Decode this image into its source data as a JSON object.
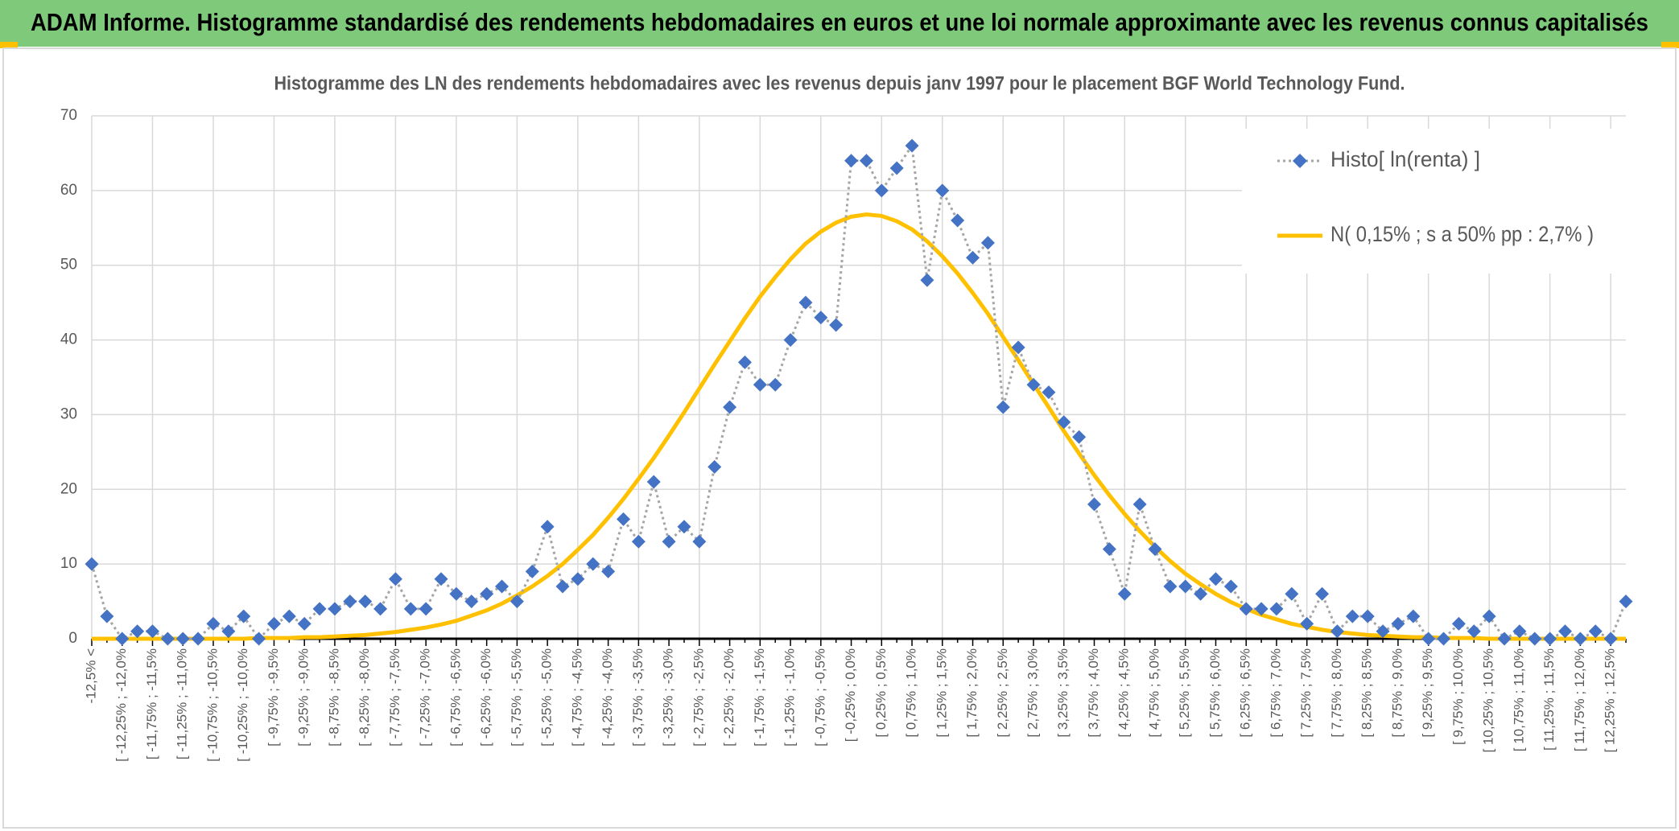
{
  "header": {
    "title": "ADAM Informe. Histogramme standardisé des rendements hebdomadaires en euros et une loi normale approximante avec les revenus connus capitalisés"
  },
  "chart_data": {
    "type": "line",
    "title": "Histogramme des LN des rendements hebdomadaires avec les revenus depuis janv 1997 pour le placement BGF World Technology Fund.",
    "categories": [
      "-12,5% <",
      null,
      "[ -12,25% ; -12,0%",
      null,
      "[ -11,75% ; -11,5%",
      null,
      "[ -11,25% ; -11,0%",
      null,
      "[ -10,75% ; -10,5%",
      null,
      "[ -10,25% ; -10,0%",
      null,
      "[ -9,75% ; -9,5%",
      null,
      "[ -9,25% ; -9,0%",
      null,
      "[ -8,75% ; -8,5%",
      null,
      "[ -8,25% ; -8,0%",
      null,
      "[ -7,75% ; -7,5%",
      null,
      "[ -7,25% ; -7,0%",
      null,
      "[ -6,75% ; -6,5%",
      null,
      "[ -6,25% ; -6,0%",
      null,
      "[ -5,75% ; -5,5%",
      null,
      "[ -5,25% ; -5,0%",
      null,
      "[ -4,75% ; -4,5%",
      null,
      "[ -4,25% ; -4,0%",
      null,
      "[ -3,75% ; -3,5%",
      null,
      "[ -3,25% ; -3,0%",
      null,
      "[ -2,75% ; -2,5%",
      null,
      "[ -2,25% ; -2,0%",
      null,
      "[ -1,75% ; -1,5%",
      null,
      "[ -1,25% ; -1,0%",
      null,
      "[ -0,75% ; -0,5%",
      null,
      "[ -0,25% ; 0,0%",
      null,
      "[ 0,25% ; 0,5%",
      null,
      "[ 0,75% ; 1,0%",
      null,
      "[ 1,25% ; 1,5%",
      null,
      "[ 1,75% ; 2,0%",
      null,
      "[ 2,25% ; 2,5%",
      null,
      "[ 2,75% ; 3,0%",
      null,
      "[ 3,25% ; 3,5%",
      null,
      "[ 3,75% ; 4,0%",
      null,
      "[ 4,25% ; 4,5%",
      null,
      "[ 4,75% ; 5,0%",
      null,
      "[ 5,25% ; 5,5%",
      null,
      "[ 5,75% ; 6,0%",
      null,
      "[ 6,25% ; 6,5%",
      null,
      "[ 6,75% ; 7,0%",
      null,
      "[ 7,25% ; 7,5%",
      null,
      "[ 7,75% ; 8,0%",
      null,
      "[ 8,25% ; 8,5%",
      null,
      "[ 8,75% ; 9,0%",
      null,
      "[ 9,25% ; 9,5%",
      null,
      "[ 9,75% ; 10,0%",
      null,
      "[ 10,25% ; 10,5%",
      null,
      "[ 10,75% ; 11,0%",
      null,
      "[ 11,25% ; 11,5%",
      null,
      "[ 11,75% ; 12,0%",
      null,
      "[ 12,25% ; 12,5%",
      null
    ],
    "series": [
      {
        "name": "Histo[ ln(renta) ]",
        "color": "#4472c4",
        "line_color": "#a5a5a5",
        "line_style": "dotted",
        "marker": "diamond",
        "values": [
          10,
          3,
          0,
          1,
          1,
          0,
          0,
          0,
          2,
          1,
          3,
          0,
          2,
          3,
          2,
          4,
          4,
          5,
          5,
          4,
          8,
          4,
          4,
          8,
          6,
          5,
          6,
          7,
          5,
          9,
          15,
          7,
          8,
          10,
          9,
          16,
          13,
          21,
          13,
          15,
          13,
          23,
          31,
          37,
          34,
          34,
          40,
          45,
          43,
          42,
          64,
          64,
          60,
          63,
          66,
          48,
          60,
          56,
          51,
          53,
          31,
          39,
          34,
          33,
          29,
          27,
          18,
          12,
          6,
          18,
          12,
          7,
          7,
          6,
          8,
          7,
          4,
          4,
          4,
          6,
          2,
          6,
          1,
          3,
          3,
          1,
          2,
          3,
          0,
          0,
          2,
          1,
          3,
          0,
          1,
          0,
          0,
          1,
          0,
          1,
          0,
          5
        ]
      },
      {
        "name": "N( 0,15% ; s a 50% pp : 2,7% )",
        "color": "#ffc000",
        "line_style": "solid",
        "marker": "none",
        "values": [
          0,
          0,
          0,
          0,
          0,
          0,
          0,
          0,
          0,
          0,
          0,
          0.1,
          0.1,
          0.1,
          0.2,
          0.2,
          0.3,
          0.4,
          0.5,
          0.7,
          0.9,
          1.2,
          1.5,
          1.9,
          2.4,
          3.1,
          3.8,
          4.7,
          5.8,
          7,
          8.4,
          10,
          11.9,
          13.9,
          16.2,
          18.7,
          21.4,
          24.2,
          27.2,
          30.3,
          33.5,
          36.7,
          39.8,
          42.9,
          45.8,
          48.4,
          50.8,
          52.9,
          54.5,
          55.7,
          56.5,
          56.8,
          56.6,
          55.9,
          54.8,
          53.2,
          51.2,
          48.9,
          46.3,
          43.5,
          40.4,
          37.3,
          34.1,
          31,
          27.8,
          24.8,
          21.9,
          19.2,
          16.7,
          14.4,
          12.3,
          10.4,
          8.7,
          7.3,
          6,
          4.9,
          4,
          3.2,
          2.6,
          2,
          1.6,
          1.2,
          0.9,
          0.7,
          0.5,
          0.4,
          0.3,
          0.2,
          0.2,
          0.1,
          0.1,
          0.1,
          0,
          0,
          0,
          0,
          0,
          0,
          0,
          0,
          0,
          0
        ]
      }
    ],
    "ylim": [
      0,
      70
    ],
    "yticks": [
      0,
      10,
      20,
      30,
      40,
      50,
      60,
      70
    ],
    "grid": true,
    "legend": "upper right"
  }
}
